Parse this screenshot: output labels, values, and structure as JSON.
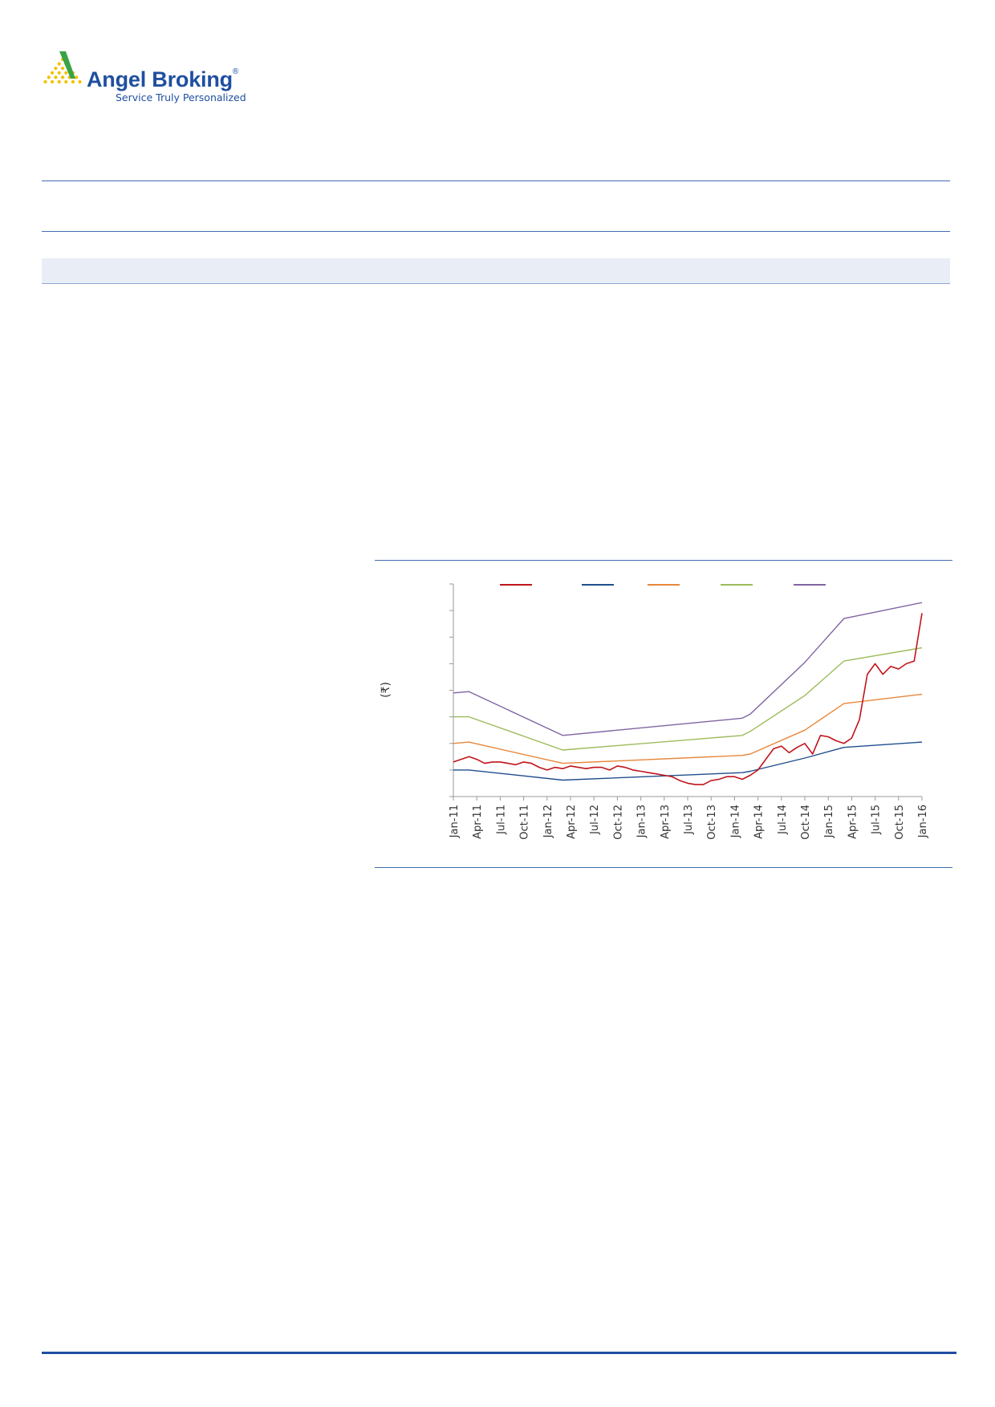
{
  "brand": {
    "name": "Angel Broking",
    "registered_mark": "®",
    "tagline": "Service Truly Personalized",
    "logo_colors": [
      "#3aa346",
      "#f2c200",
      "#1f4fa0"
    ]
  },
  "colors": {
    "rule": "#3e6db0",
    "band": "#e9eef6",
    "footer_rule": "#1f4fa0"
  },
  "chart_data": {
    "type": "line",
    "title": "",
    "xlabel": "",
    "ylabel": "(₹)",
    "ylim": [
      0,
      8
    ],
    "y_ticks": [
      0,
      1,
      2,
      3,
      4,
      5,
      6,
      7,
      8
    ],
    "y_tick_labels_visible": false,
    "grid": false,
    "legend": "top",
    "x_start": "Jan-11",
    "x_end": "Jan-16",
    "x_tick_labels": [
      "Jan-11",
      "Apr-11",
      "Jul-11",
      "Oct-11",
      "Jan-12",
      "Apr-12",
      "Jul-12",
      "Oct-12",
      "Jan-13",
      "Apr-13",
      "Jul-13",
      "Oct-13",
      "Jan-14",
      "Apr-14",
      "Jul-14",
      "Oct-14",
      "Jan-15",
      "Apr-15",
      "Jul-15",
      "Oct-15",
      "Jan-16"
    ],
    "series": [
      {
        "color": "#c0151c",
        "kind": "price",
        "x": [
          "Jan-11",
          "Feb-11",
          "Mar-11",
          "Apr-11",
          "May-11",
          "Jun-11",
          "Jul-11",
          "Aug-11",
          "Sep-11",
          "Oct-11",
          "Nov-11",
          "Dec-11",
          "Jan-12",
          "Feb-12",
          "Mar-12",
          "Apr-12",
          "May-12",
          "Jun-12",
          "Jul-12",
          "Aug-12",
          "Sep-12",
          "Oct-12",
          "Nov-12",
          "Dec-12",
          "Jan-13",
          "Feb-13",
          "Mar-13",
          "Apr-13",
          "May-13",
          "Jun-13",
          "Jul-13",
          "Aug-13",
          "Sep-13",
          "Oct-13",
          "Nov-13",
          "Dec-13",
          "Jan-14",
          "Feb-14",
          "Mar-14",
          "Apr-14",
          "May-14",
          "Jun-14",
          "Jul-14",
          "Aug-14",
          "Sep-14",
          "Oct-14",
          "Nov-14",
          "Dec-14",
          "Jan-15",
          "Feb-15",
          "Mar-15",
          "Apr-15",
          "May-15",
          "Jun-15",
          "Jul-15",
          "Aug-15",
          "Sep-15",
          "Oct-15",
          "Nov-15",
          "Dec-15",
          "Jan-16"
        ],
        "y": [
          1.3,
          1.4,
          1.5,
          1.4,
          1.25,
          1.3,
          1.3,
          1.25,
          1.2,
          1.3,
          1.25,
          1.1,
          1.0,
          1.1,
          1.05,
          1.15,
          1.1,
          1.05,
          1.1,
          1.1,
          1.0,
          1.15,
          1.1,
          1.0,
          0.95,
          0.9,
          0.85,
          0.8,
          0.75,
          0.6,
          0.5,
          0.45,
          0.45,
          0.6,
          0.65,
          0.75,
          0.75,
          0.65,
          0.8,
          1.0,
          1.4,
          1.8,
          1.9,
          1.65,
          1.85,
          2.0,
          1.6,
          2.3,
          2.25,
          2.1,
          2.0,
          2.2,
          2.9,
          4.6,
          5.0,
          4.6,
          4.9,
          4.8,
          5.0,
          5.1,
          6.9
        ]
      },
      {
        "color": "#1f4e8c",
        "kind": "band",
        "x": [
          "Jan-11",
          "Mar-11",
          "Mar-12",
          "Feb-14",
          "Mar-14",
          "Oct-14",
          "Mar-15",
          "Jan-16"
        ],
        "y": [
          1.0,
          1.0,
          0.62,
          0.9,
          0.95,
          1.45,
          1.85,
          2.05
        ]
      },
      {
        "color": "#e8873a",
        "kind": "band",
        "x": [
          "Jan-11",
          "Mar-11",
          "Mar-12",
          "Feb-14",
          "Mar-14",
          "Oct-14",
          "Mar-15",
          "Jan-16"
        ],
        "y": [
          2.0,
          2.05,
          1.25,
          1.55,
          1.6,
          2.5,
          3.5,
          3.85
        ]
      },
      {
        "color": "#9bbb59",
        "kind": "band",
        "x": [
          "Jan-11",
          "Mar-11",
          "Mar-12",
          "Feb-14",
          "Mar-14",
          "Oct-14",
          "Mar-15",
          "Jan-16"
        ],
        "y": [
          3.0,
          3.0,
          1.75,
          2.3,
          2.45,
          3.8,
          5.1,
          5.6
        ]
      },
      {
        "color": "#8064a2",
        "kind": "band",
        "x": [
          "Jan-11",
          "Mar-11",
          "Mar-12",
          "Feb-14",
          "Mar-14",
          "Oct-14",
          "Mar-15",
          "Jan-16"
        ],
        "y": [
          3.9,
          3.95,
          2.3,
          2.95,
          3.1,
          5.05,
          6.7,
          7.3
        ]
      }
    ]
  }
}
